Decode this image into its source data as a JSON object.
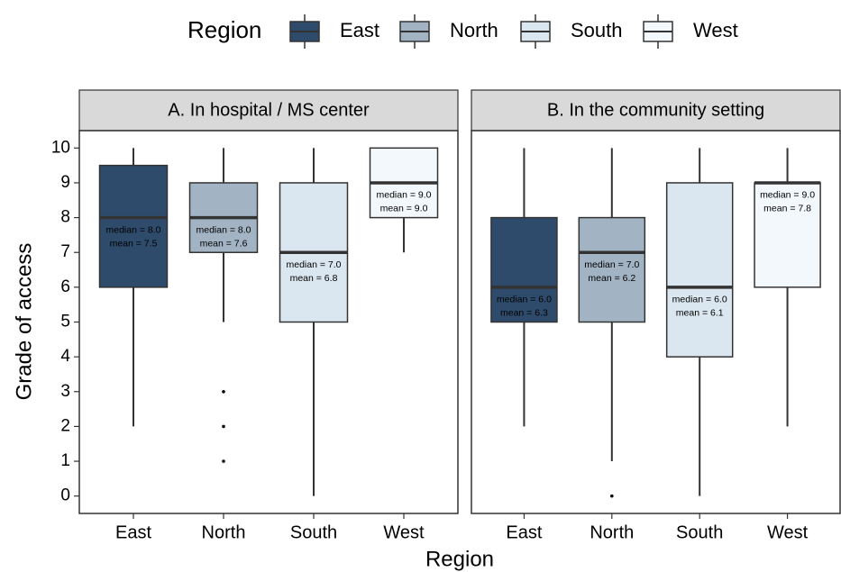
{
  "legend_title": "Region",
  "legend": [
    {
      "name": "East",
      "color": "#2f4b6c"
    },
    {
      "name": "North",
      "color": "#a2b4c4"
    },
    {
      "name": "South",
      "color": "#dbe7f0"
    },
    {
      "name": "West",
      "color": "#f3f8fd"
    }
  ],
  "label_colors": [
    "#000000",
    "#ffffff",
    "#000000",
    "#000000"
  ],
  "x_label": "Region",
  "y_label": "Grade of access",
  "chart_data": [
    {
      "type": "box",
      "title": "A. In hospital / MS center",
      "categories": [
        "East",
        "North",
        "South",
        "West"
      ],
      "ylim": [
        -0.5,
        10.5
      ],
      "yticks": [
        0,
        1,
        2,
        3,
        4,
        5,
        6,
        7,
        8,
        9,
        10
      ],
      "boxes": [
        {
          "min": 2,
          "q1": 6,
          "median": 8,
          "q3": 9.5,
          "max": 10,
          "outliers": [],
          "mean": 7.5,
          "median_label": "median = 8.0",
          "mean_label": "mean = 7.5"
        },
        {
          "min": 5,
          "q1": 7,
          "median": 8,
          "q3": 9,
          "max": 10,
          "outliers": [
            3,
            2,
            1
          ],
          "mean": 7.6,
          "median_label": "median = 8.0",
          "mean_label": "mean = 7.6"
        },
        {
          "min": 0,
          "q1": 5,
          "median": 7,
          "q3": 9,
          "max": 10,
          "outliers": [],
          "mean": 6.8,
          "median_label": "median = 7.0",
          "mean_label": "mean = 6.8"
        },
        {
          "min": 7,
          "q1": 8,
          "median": 9,
          "q3": 10,
          "max": 10,
          "outliers": [],
          "mean": 9.0,
          "median_label": "median = 9.0",
          "mean_label": "mean = 9.0"
        }
      ]
    },
    {
      "type": "box",
      "title": "B. In the community setting",
      "categories": [
        "East",
        "North",
        "South",
        "West"
      ],
      "ylim": [
        -0.5,
        10.5
      ],
      "yticks": [
        0,
        1,
        2,
        3,
        4,
        5,
        6,
        7,
        8,
        9,
        10
      ],
      "boxes": [
        {
          "min": 2,
          "q1": 5,
          "median": 6,
          "q3": 8,
          "max": 10,
          "outliers": [],
          "mean": 6.3,
          "median_label": "median = 6.0",
          "mean_label": "mean = 6.3"
        },
        {
          "min": 1,
          "q1": 5,
          "median": 7,
          "q3": 8,
          "max": 10,
          "outliers": [
            0
          ],
          "mean": 6.2,
          "median_label": "median = 7.0",
          "mean_label": "mean = 6.2"
        },
        {
          "min": 0,
          "q1": 4,
          "median": 6,
          "q3": 9,
          "max": 10,
          "outliers": [],
          "mean": 6.1,
          "median_label": "median = 6.0",
          "mean_label": "mean = 6.1"
        },
        {
          "min": 2,
          "q1": 6,
          "median": 9,
          "q3": 9,
          "max": 10,
          "outliers": [],
          "mean": 7.8,
          "median_label": "median = 9.0",
          "mean_label": "mean = 7.8"
        }
      ]
    }
  ]
}
